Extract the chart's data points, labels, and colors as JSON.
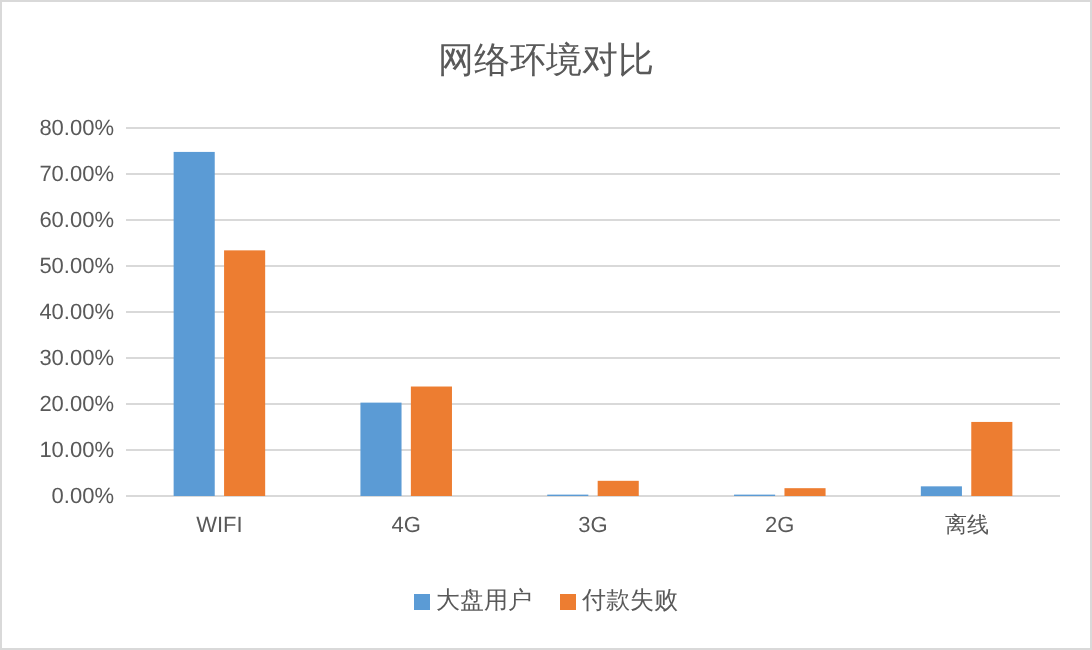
{
  "chart_data": {
    "type": "bar",
    "title": "网络环境对比",
    "categories": [
      "WIFI",
      "4G",
      "3G",
      "2G",
      "离线"
    ],
    "series": [
      {
        "name": "大盘用户",
        "color": "#5b9bd5",
        "values": [
          74.8,
          20.3,
          0.3,
          0.3,
          2.1
        ]
      },
      {
        "name": "付款失败",
        "color": "#ed7d31",
        "values": [
          53.4,
          23.8,
          3.3,
          1.7,
          16.1
        ]
      }
    ],
    "ylim": [
      0,
      80
    ],
    "yticks": [
      {
        "value": 0,
        "label": "0.00%"
      },
      {
        "value": 10,
        "label": "10.00%"
      },
      {
        "value": 20,
        "label": "20.00%"
      },
      {
        "value": 30,
        "label": "30.00%"
      },
      {
        "value": 40,
        "label": "40.00%"
      },
      {
        "value": 50,
        "label": "50.00%"
      },
      {
        "value": 60,
        "label": "60.00%"
      },
      {
        "value": 70,
        "label": "70.00%"
      },
      {
        "value": 80,
        "label": "80.00%"
      }
    ],
    "grid": "y",
    "legend": "bottom"
  }
}
